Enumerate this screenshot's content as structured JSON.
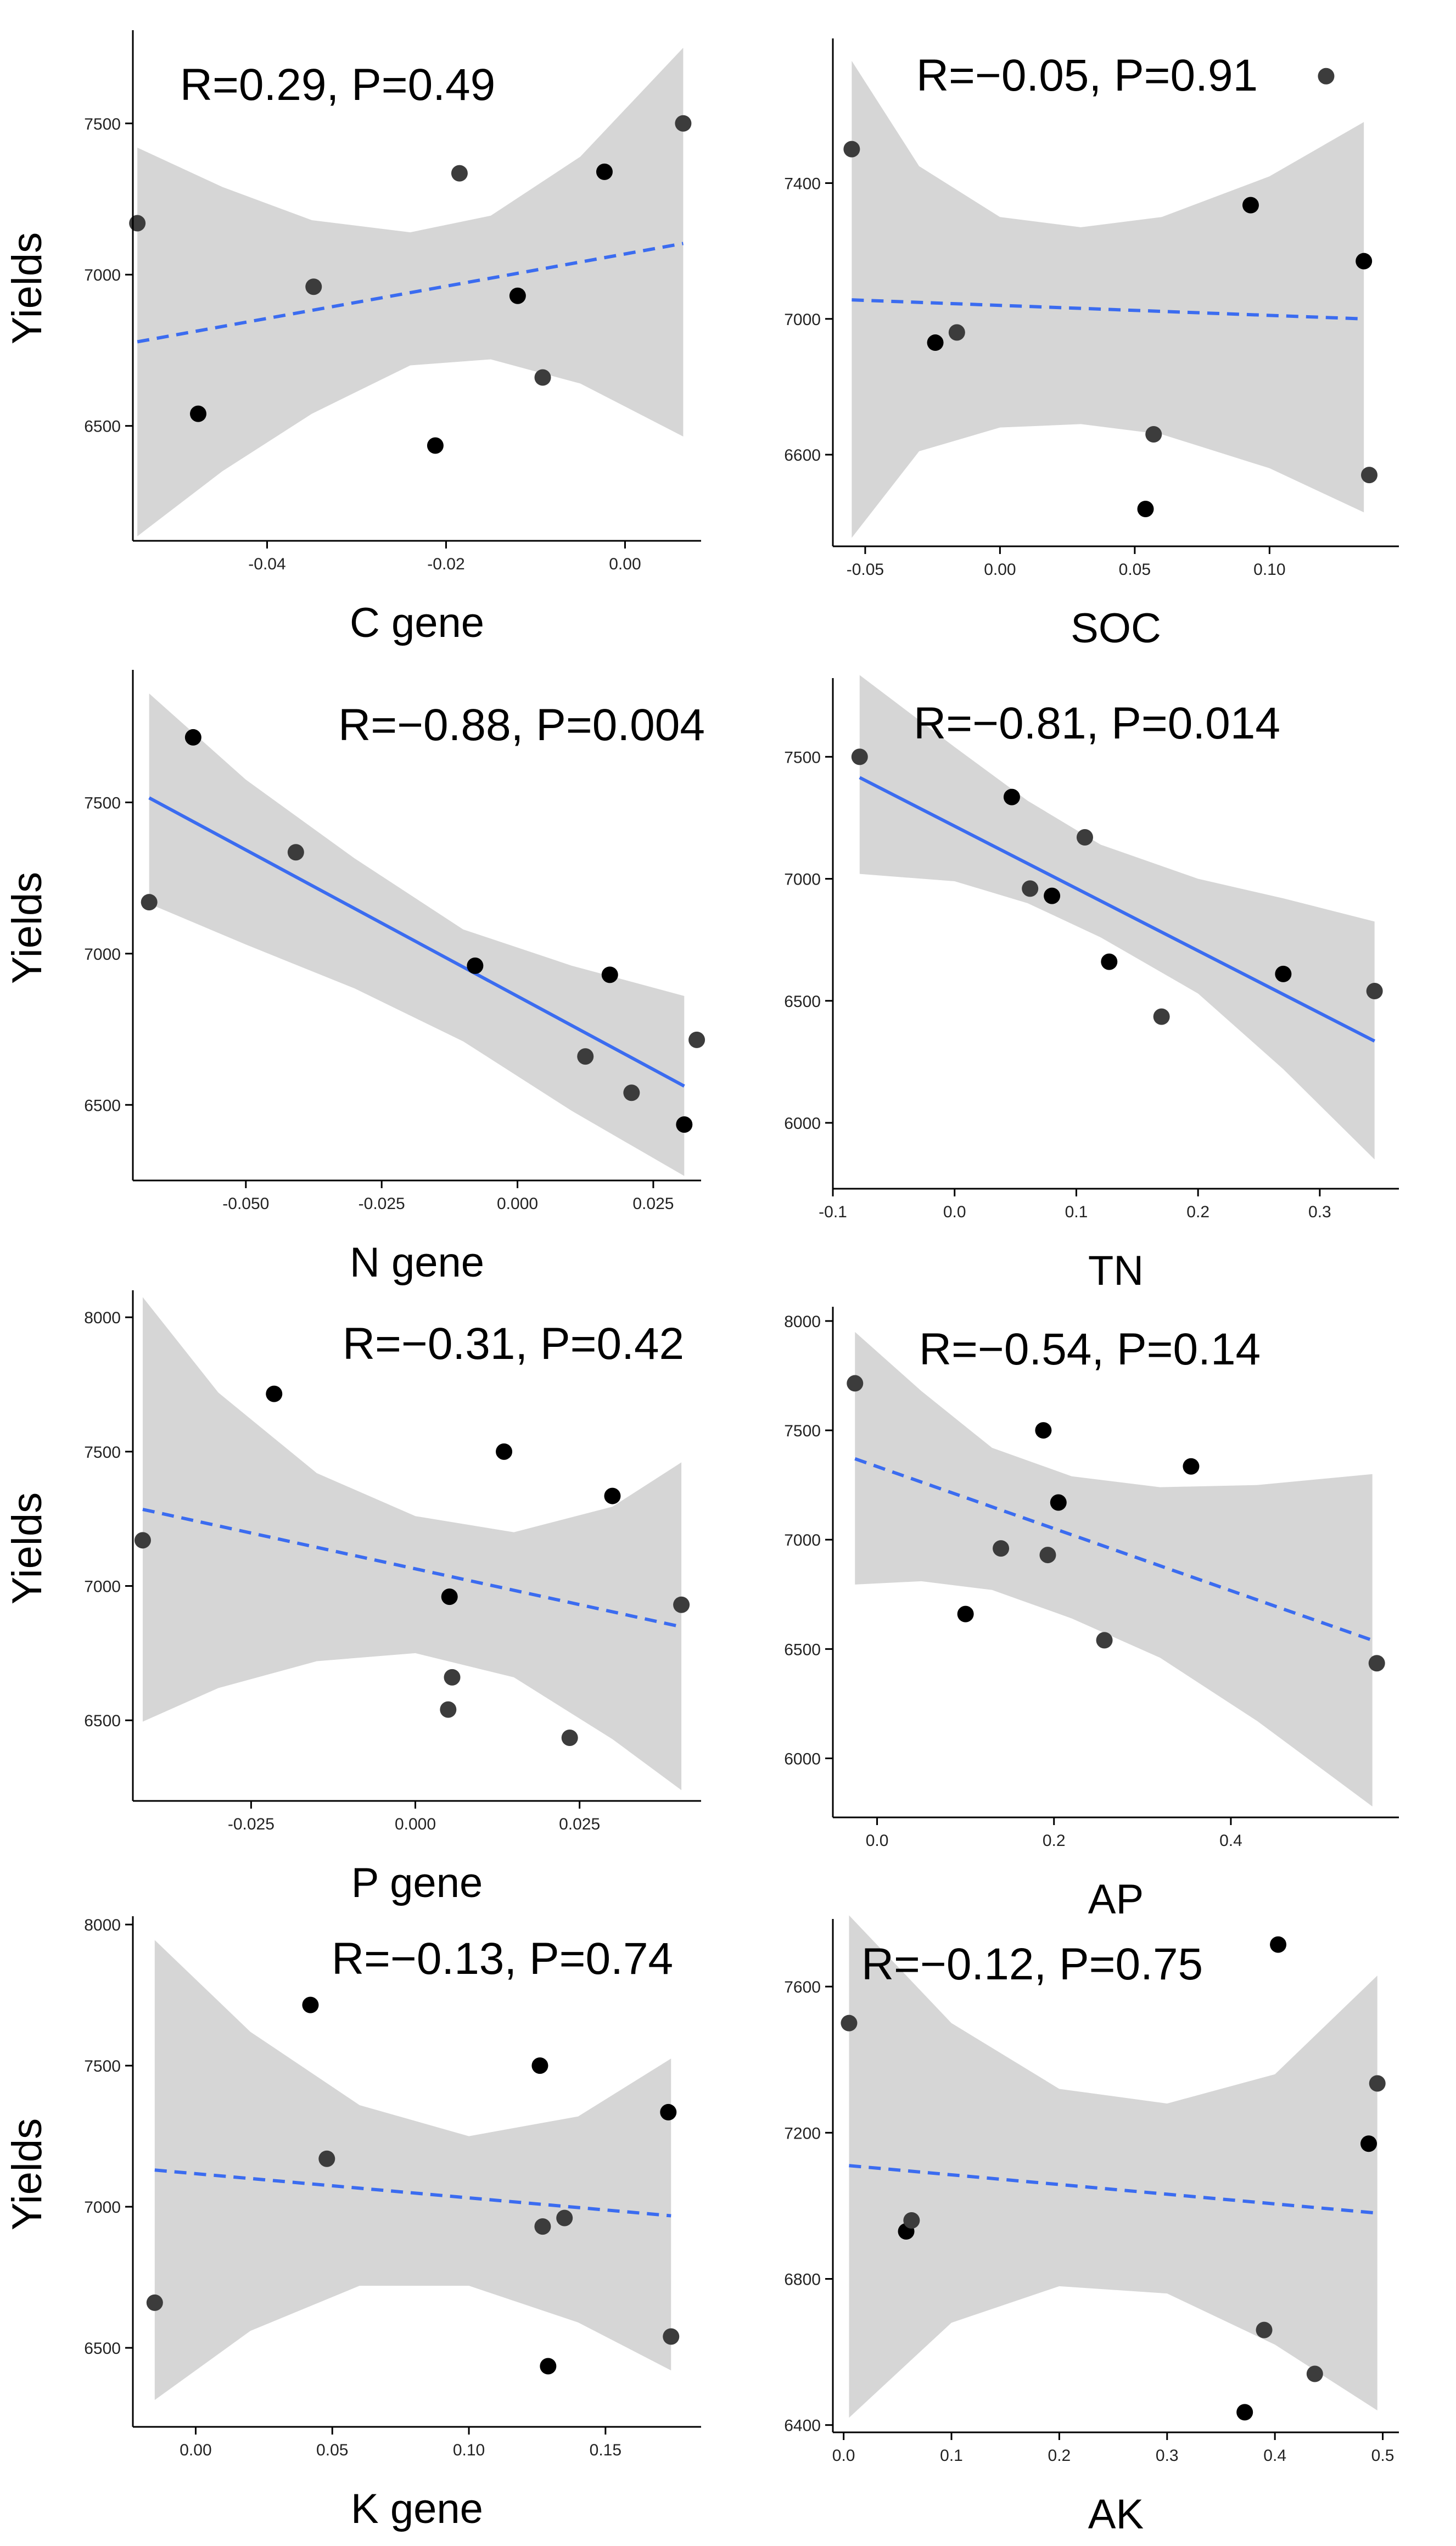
{
  "colors": {
    "band": "#d6d6d6",
    "line": "#3b6cf0",
    "point_dark": "#000000",
    "point_mid": "#3c3c3c",
    "axis": "#000000"
  },
  "chart_data": [
    {
      "id": "c-gene",
      "type": "scatter",
      "xlabel": "C gene",
      "ylabel": "Yields",
      "stat": "R=0.29, P=0.49",
      "fit": "dashed",
      "xlim": [
        -0.055,
        0.0085
      ],
      "ylim": [
        6120,
        7790
      ],
      "xticks": [
        -0.04,
        -0.02,
        0.0
      ],
      "xtick_labels": [
        "-0.04",
        "-0.02",
        "0.00"
      ],
      "yticks": [
        6500,
        7000,
        7500
      ],
      "ytick_labels": [
        "6500",
        "7000",
        "7500"
      ],
      "points": [
        [
          -0.0545,
          7170
        ],
        [
          -0.0477,
          6540
        ],
        [
          -0.0348,
          6960
        ],
        [
          -0.0212,
          6435
        ],
        [
          -0.0185,
          7335
        ],
        [
          -0.012,
          6930
        ],
        [
          -0.0092,
          6660
        ],
        [
          -0.0023,
          7340
        ],
        [
          0.0065,
          7500
        ]
      ],
      "fit_line": [
        [
          -0.0545,
          6778
        ],
        [
          0.0065,
          7103
        ]
      ],
      "band_upper": [
        [
          -0.0545,
          7420
        ],
        [
          -0.045,
          7290
        ],
        [
          -0.035,
          7180
        ],
        [
          -0.024,
          7140
        ],
        [
          -0.015,
          7195
        ],
        [
          -0.005,
          7390
        ],
        [
          0.0065,
          7750
        ]
      ],
      "band_lower": [
        [
          -0.0545,
          6135
        ],
        [
          -0.045,
          6350
        ],
        [
          -0.035,
          6540
        ],
        [
          -0.024,
          6700
        ],
        [
          -0.015,
          6720
        ],
        [
          -0.005,
          6640
        ],
        [
          0.0065,
          6465
        ]
      ]
    },
    {
      "id": "soc",
      "type": "scatter",
      "xlabel": "SOC",
      "ylabel": "",
      "stat": "R=−0.05, P=0.91",
      "fit": "dashed",
      "xlim": [
        -0.062,
        0.148
      ],
      "ylim": [
        6330,
        7810
      ],
      "xticks": [
        -0.05,
        0.0,
        0.05,
        0.1
      ],
      "xtick_labels": [
        "-0.05",
        "0.00",
        "0.05",
        "0.10"
      ],
      "yticks": [
        6600,
        7000,
        7400
      ],
      "ytick_labels": [
        "6600",
        "7000",
        "7400"
      ],
      "points": [
        [
          -0.055,
          7500
        ],
        [
          -0.024,
          6930
        ],
        [
          -0.016,
          6960
        ],
        [
          0.054,
          6440
        ],
        [
          0.057,
          6660
        ],
        [
          0.093,
          7335
        ],
        [
          0.121,
          7715
        ],
        [
          0.135,
          7170
        ],
        [
          0.137,
          6540
        ]
      ],
      "fit_line": [
        [
          -0.055,
          7056
        ],
        [
          0.135,
          7000
        ]
      ],
      "band_upper": [
        [
          -0.055,
          7760
        ],
        [
          -0.03,
          7450
        ],
        [
          0.0,
          7300
        ],
        [
          0.03,
          7270
        ],
        [
          0.06,
          7300
        ],
        [
          0.1,
          7420
        ],
        [
          0.135,
          7580
        ]
      ],
      "band_lower": [
        [
          -0.055,
          6355
        ],
        [
          -0.03,
          6610
        ],
        [
          0.0,
          6680
        ],
        [
          0.03,
          6690
        ],
        [
          0.06,
          6660
        ],
        [
          0.1,
          6560
        ],
        [
          0.135,
          6430
        ]
      ]
    },
    {
      "id": "n-gene",
      "type": "scatter",
      "xlabel": "N gene",
      "ylabel": "Yields",
      "stat": "R=−0.88, P=0.004",
      "fit": "solid",
      "xlim": [
        -0.0708,
        0.0338
      ],
      "ylim": [
        6250,
        7920
      ],
      "xticks": [
        -0.05,
        -0.025,
        0.0,
        0.025
      ],
      "xtick_labels": [
        "-0.050",
        "-0.025",
        "0.000",
        "0.025"
      ],
      "yticks": [
        6500,
        7000,
        7500
      ],
      "ytick_labels": [
        "6500",
        "7000",
        "7500"
      ],
      "points": [
        [
          -0.0678,
          7170
        ],
        [
          -0.0597,
          7715
        ],
        [
          -0.0408,
          7335
        ],
        [
          -0.0078,
          6960
        ],
        [
          0.0125,
          6660
        ],
        [
          0.017,
          6930
        ],
        [
          0.021,
          6540
        ],
        [
          0.0307,
          6435
        ],
        [
          0.033,
          6715
        ]
      ],
      "fit_line": [
        [
          -0.0678,
          7515
        ],
        [
          0.0307,
          6562
        ]
      ],
      "band_upper": [
        [
          -0.0678,
          7860
        ],
        [
          -0.05,
          7575
        ],
        [
          -0.03,
          7315
        ],
        [
          -0.01,
          7080
        ],
        [
          0.01,
          6960
        ],
        [
          0.0307,
          6860
        ]
      ],
      "band_lower": [
        [
          -0.0678,
          7165
        ],
        [
          -0.05,
          7030
        ],
        [
          -0.03,
          6885
        ],
        [
          -0.01,
          6710
        ],
        [
          0.01,
          6480
        ],
        [
          0.0307,
          6265
        ]
      ]
    },
    {
      "id": "tn",
      "type": "scatter",
      "xlabel": "TN",
      "ylabel": "",
      "stat": "R=−0.81, P=0.014",
      "fit": "solid",
      "xlim": [
        -0.1,
        0.365
      ],
      "ylim": [
        5730,
        7800
      ],
      "xticks": [
        -0.1,
        0.0,
        0.1,
        0.2,
        0.3
      ],
      "xtick_labels": [
        "-0.1",
        "0.0",
        "0.1",
        "0.2",
        "0.3"
      ],
      "yticks": [
        6000,
        6500,
        7000,
        7500
      ],
      "ytick_labels": [
        "6000",
        "6500",
        "7000",
        "7500"
      ],
      "points": [
        [
          -0.078,
          7500
        ],
        [
          0.047,
          7335
        ],
        [
          0.062,
          6960
        ],
        [
          0.08,
          6930
        ],
        [
          0.107,
          7170
        ],
        [
          0.127,
          6660
        ],
        [
          0.17,
          6435
        ],
        [
          0.27,
          6610
        ],
        [
          0.345,
          6540
        ]
      ],
      "fit_line": [
        [
          -0.078,
          7415
        ],
        [
          0.345,
          6335
        ]
      ],
      "band_upper": [
        [
          -0.078,
          7835
        ],
        [
          0.0,
          7540
        ],
        [
          0.06,
          7320
        ],
        [
          0.12,
          7140
        ],
        [
          0.2,
          7000
        ],
        [
          0.27,
          6920
        ],
        [
          0.345,
          6825
        ]
      ],
      "band_lower": [
        [
          -0.078,
          7020
        ],
        [
          0.0,
          6990
        ],
        [
          0.06,
          6900
        ],
        [
          0.12,
          6760
        ],
        [
          0.2,
          6530
        ],
        [
          0.27,
          6220
        ],
        [
          0.345,
          5850
        ]
      ]
    },
    {
      "id": "p-gene",
      "type": "scatter",
      "xlabel": "P gene",
      "ylabel": "Yields",
      "stat": "R=−0.31, P=0.42",
      "fit": "dashed",
      "xlim": [
        -0.043,
        0.0435
      ],
      "ylim": [
        6200,
        8080
      ],
      "xticks": [
        -0.025,
        0.0,
        0.025
      ],
      "xtick_labels": [
        "-0.025",
        "0.000",
        "0.025"
      ],
      "yticks": [
        6500,
        7000,
        7500,
        8000
      ],
      "ytick_labels": [
        "6500",
        "7000",
        "7500",
        "8000"
      ],
      "points": [
        [
          -0.0415,
          7170
        ],
        [
          -0.0215,
          7715
        ],
        [
          0.005,
          6540
        ],
        [
          0.0052,
          6960
        ],
        [
          0.0056,
          6660
        ],
        [
          0.0135,
          7500
        ],
        [
          0.0235,
          6435
        ],
        [
          0.03,
          7335
        ],
        [
          0.0405,
          6930
        ]
      ],
      "fit_line": [
        [
          -0.0415,
          7285
        ],
        [
          0.0405,
          6848
        ]
      ],
      "band_upper": [
        [
          -0.0415,
          8075
        ],
        [
          -0.03,
          7720
        ],
        [
          -0.015,
          7420
        ],
        [
          0.0,
          7260
        ],
        [
          0.015,
          7200
        ],
        [
          0.03,
          7295
        ],
        [
          0.0405,
          7460
        ]
      ],
      "band_lower": [
        [
          -0.0415,
          6495
        ],
        [
          -0.03,
          6620
        ],
        [
          -0.015,
          6720
        ],
        [
          0.0,
          6750
        ],
        [
          0.015,
          6660
        ],
        [
          0.03,
          6430
        ],
        [
          0.0405,
          6240
        ]
      ]
    },
    {
      "id": "ap",
      "type": "scatter",
      "xlabel": "AP",
      "ylabel": "",
      "stat": "R=−0.54, P=0.14",
      "fit": "dashed",
      "xlim": [
        -0.05,
        0.59
      ],
      "ylim": [
        5730,
        8040
      ],
      "xticks": [
        0.0,
        0.2,
        0.4
      ],
      "xtick_labels": [
        "0.0",
        "0.2",
        "0.4"
      ],
      "yticks": [
        6000,
        6500,
        7000,
        7500,
        8000
      ],
      "ytick_labels": [
        "6000",
        "6500",
        "7000",
        "7500",
        "8000"
      ],
      "points": [
        [
          -0.025,
          7715
        ],
        [
          0.1,
          6660
        ],
        [
          0.14,
          6960
        ],
        [
          0.188,
          7500
        ],
        [
          0.193,
          6930
        ],
        [
          0.205,
          7170
        ],
        [
          0.257,
          6540
        ],
        [
          0.355,
          7335
        ],
        [
          0.565,
          6435
        ]
      ],
      "fit_line": [
        [
          -0.025,
          7370
        ],
        [
          0.56,
          6540
        ]
      ],
      "band_upper": [
        [
          -0.025,
          7950
        ],
        [
          0.05,
          7680
        ],
        [
          0.13,
          7420
        ],
        [
          0.22,
          7290
        ],
        [
          0.32,
          7240
        ],
        [
          0.43,
          7250
        ],
        [
          0.56,
          7300
        ]
      ],
      "band_lower": [
        [
          -0.025,
          6795
        ],
        [
          0.05,
          6810
        ],
        [
          0.13,
          6770
        ],
        [
          0.22,
          6640
        ],
        [
          0.32,
          6460
        ],
        [
          0.43,
          6170
        ],
        [
          0.56,
          5780
        ]
      ]
    },
    {
      "id": "k-gene",
      "type": "scatter",
      "xlabel": "K gene",
      "ylabel": "Yields",
      "stat": "R=−0.13, P=0.74",
      "fit": "dashed",
      "xlim": [
        -0.023,
        0.185
      ],
      "ylim": [
        6220,
        8010
      ],
      "xticks": [
        0.0,
        0.05,
        0.1,
        0.15
      ],
      "xtick_labels": [
        "0.00",
        "0.05",
        "0.10",
        "0.15"
      ],
      "yticks": [
        6500,
        7000,
        7500,
        8000
      ],
      "ytick_labels": [
        "6500",
        "7000",
        "7500",
        "8000"
      ],
      "points": [
        [
          -0.015,
          6660
        ],
        [
          0.042,
          7715
        ],
        [
          0.048,
          7170
        ],
        [
          0.126,
          7500
        ],
        [
          0.127,
          6930
        ],
        [
          0.129,
          6435
        ],
        [
          0.135,
          6960
        ],
        [
          0.173,
          7335
        ],
        [
          0.174,
          6540
        ]
      ],
      "fit_line": [
        [
          -0.015,
          7130
        ],
        [
          0.174,
          6968
        ]
      ],
      "band_upper": [
        [
          -0.015,
          7945
        ],
        [
          0.02,
          7620
        ],
        [
          0.06,
          7360
        ],
        [
          0.1,
          7250
        ],
        [
          0.14,
          7320
        ],
        [
          0.174,
          7525
        ]
      ],
      "band_lower": [
        [
          -0.015,
          6315
        ],
        [
          0.02,
          6560
        ],
        [
          0.06,
          6720
        ],
        [
          0.1,
          6720
        ],
        [
          0.14,
          6590
        ],
        [
          0.174,
          6420
        ]
      ]
    },
    {
      "id": "ak",
      "type": "scatter",
      "xlabel": "AK",
      "ylabel": "",
      "stat": "R=−0.12, P=0.75",
      "fit": "dashed",
      "xlim": [
        -0.01,
        0.515
      ],
      "ylim": [
        6380,
        7770
      ],
      "xticks": [
        0.0,
        0.1,
        0.2,
        0.3,
        0.4,
        0.5
      ],
      "xtick_labels": [
        "0.0",
        "0.1",
        "0.2",
        "0.3",
        "0.4",
        "0.5"
      ],
      "yticks": [
        6400,
        6800,
        7200,
        7600
      ],
      "ytick_labels": [
        "6400",
        "6800",
        "7200",
        "7600"
      ],
      "points": [
        [
          0.005,
          7500
        ],
        [
          0.058,
          6930
        ],
        [
          0.063,
          6960
        ],
        [
          0.372,
          6435
        ],
        [
          0.39,
          6660
        ],
        [
          0.403,
          7715
        ],
        [
          0.437,
          6540
        ],
        [
          0.487,
          7170
        ],
        [
          0.495,
          7335
        ]
      ],
      "fit_line": [
        [
          0.005,
          7110
        ],
        [
          0.495,
          6980
        ]
      ],
      "band_upper": [
        [
          0.005,
          7795
        ],
        [
          0.1,
          7500
        ],
        [
          0.2,
          7320
        ],
        [
          0.3,
          7280
        ],
        [
          0.4,
          7360
        ],
        [
          0.495,
          7630
        ]
      ],
      "band_lower": [
        [
          0.005,
          6420
        ],
        [
          0.1,
          6680
        ],
        [
          0.2,
          6780
        ],
        [
          0.3,
          6760
        ],
        [
          0.4,
          6620
        ],
        [
          0.495,
          6440
        ]
      ]
    }
  ]
}
